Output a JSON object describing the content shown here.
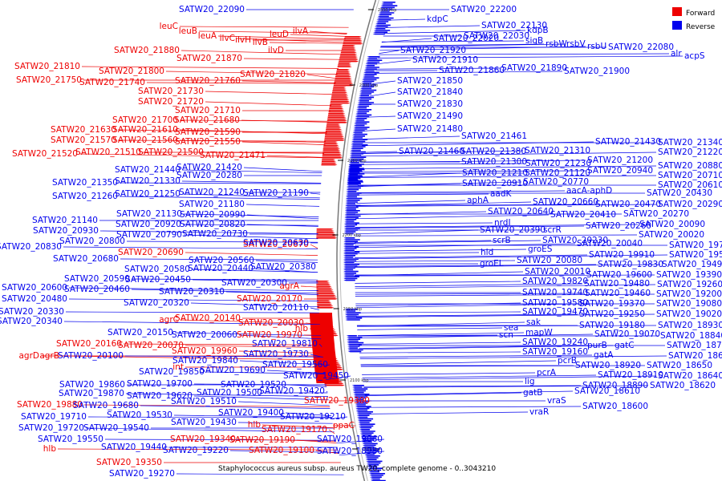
{
  "caption": "Staphylococcus aureus subsp. aureus TW20, complete genome - 0..3043210",
  "legend": [
    {
      "label": "Forward",
      "color": "#ee0000"
    },
    {
      "label": "Reverse",
      "color": "#0000ee"
    }
  ],
  "colors": {
    "forward": "#ee0000",
    "reverse": "#0000ee",
    "backbone": "#777777"
  },
  "ticks": [
    "2350 kbp",
    "2300 kbp",
    "2250 kbp",
    "2200 kbp",
    "2150 kbp",
    "2100 kbp",
    "2050 kbp"
  ],
  "labels": {
    "left": [
      {
        "text": "SATW20_22090",
        "strand": "reverse"
      },
      {
        "text": "leuC",
        "strand": "forward"
      },
      {
        "text": "leuB",
        "strand": "forward"
      },
      {
        "text": "leuA",
        "strand": "forward"
      },
      {
        "text": "ilvC",
        "strand": "forward"
      },
      {
        "text": "ilvH",
        "strand": "forward"
      },
      {
        "text": "ilvB",
        "strand": "forward"
      },
      {
        "text": "leuD",
        "strand": "forward"
      },
      {
        "text": "ilvA",
        "strand": "forward"
      },
      {
        "text": "SATW20_21880",
        "strand": "forward"
      },
      {
        "text": "ilvD",
        "strand": "forward"
      },
      {
        "text": "SATW20_21870",
        "strand": "forward"
      },
      {
        "text": "SATW20_21810",
        "strand": "forward"
      },
      {
        "text": "SATW20_21800",
        "strand": "forward"
      },
      {
        "text": "SATW20_21820",
        "strand": "forward"
      },
      {
        "text": "SATW20_21750",
        "strand": "forward"
      },
      {
        "text": "SATW20_21740",
        "strand": "forward"
      },
      {
        "text": "SATW20_21760",
        "strand": "forward"
      },
      {
        "text": "SATW20_21730",
        "strand": "forward"
      },
      {
        "text": "SATW20_21720",
        "strand": "forward"
      },
      {
        "text": "SATW20_21710",
        "strand": "forward"
      },
      {
        "text": "SATW20_21700",
        "strand": "forward"
      },
      {
        "text": "SATW20_21680",
        "strand": "forward"
      },
      {
        "text": "SATW20_21630",
        "strand": "forward"
      },
      {
        "text": "SATW20_21610",
        "strand": "forward"
      },
      {
        "text": "SATW20_21590",
        "strand": "forward"
      },
      {
        "text": "SATW20_21570",
        "strand": "forward"
      },
      {
        "text": "SATW20_21560",
        "strand": "forward"
      },
      {
        "text": "SATW20_21550",
        "strand": "forward"
      },
      {
        "text": "SATW20_21520",
        "strand": "forward"
      },
      {
        "text": "SATW20_21510",
        "strand": "forward"
      },
      {
        "text": "SATW20_21500",
        "strand": "forward"
      },
      {
        "text": "SATW20_21471",
        "strand": "forward"
      },
      {
        "text": "SATW20_21440",
        "strand": "reverse"
      },
      {
        "text": "SATW20_21420",
        "strand": "reverse"
      },
      {
        "text": "SATW20_20280",
        "strand": "reverse"
      },
      {
        "text": "SATW20_21350",
        "strand": "reverse"
      },
      {
        "text": "SATW20_21330",
        "strand": "reverse"
      },
      {
        "text": "SATW20_21260",
        "strand": "reverse"
      },
      {
        "text": "SATW20_21250",
        "strand": "reverse"
      },
      {
        "text": "SATW20_21240",
        "strand": "reverse"
      },
      {
        "text": "SATW20_21190",
        "strand": "reverse"
      },
      {
        "text": "SATW20_21180",
        "strand": "reverse"
      },
      {
        "text": "SATW20_21130",
        "strand": "reverse"
      },
      {
        "text": "SATW20_20990",
        "strand": "reverse"
      },
      {
        "text": "SATW20_21140",
        "strand": "reverse"
      },
      {
        "text": "SATW20_20920",
        "strand": "reverse"
      },
      {
        "text": "SATW20_20820",
        "strand": "reverse"
      },
      {
        "text": "SATW20_20930",
        "strand": "reverse"
      },
      {
        "text": "SATW20_20790",
        "strand": "reverse"
      },
      {
        "text": "SATW20_20730",
        "strand": "reverse"
      },
      {
        "text": "SATW20_20800",
        "strand": "reverse"
      },
      {
        "text": "SATW20_20830",
        "strand": "reverse"
      },
      {
        "text": "SATW20_20690",
        "strand": "forward"
      },
      {
        "text": "SATW20_20670",
        "strand": "forward"
      },
      {
        "text": "SATW20_20630",
        "strand": "reverse"
      },
      {
        "text": "SATW20_20680",
        "strand": "reverse"
      },
      {
        "text": "SATW20_20560",
        "strand": "reverse"
      },
      {
        "text": "SATW20_20580",
        "strand": "reverse"
      },
      {
        "text": "SATW20_20440",
        "strand": "reverse"
      },
      {
        "text": "SATW20_20380",
        "strand": "reverse"
      },
      {
        "text": "SATW20_20590",
        "strand": "reverse"
      },
      {
        "text": "SATW20_20450",
        "strand": "reverse"
      },
      {
        "text": "SATW20_20600",
        "strand": "reverse"
      },
      {
        "text": "SATW20_20460",
        "strand": "reverse"
      },
      {
        "text": "SATW20_20300",
        "strand": "reverse"
      },
      {
        "text": "agrA",
        "strand": "forward"
      },
      {
        "text": "SATW20_20480",
        "strand": "reverse"
      },
      {
        "text": "SATW20_20310",
        "strand": "reverse"
      },
      {
        "text": "SATW20_20320",
        "strand": "reverse"
      },
      {
        "text": "SATW20_20170",
        "strand": "forward"
      },
      {
        "text": "SATW20_20330",
        "strand": "reverse"
      },
      {
        "text": "SATW20_20110",
        "strand": "reverse"
      },
      {
        "text": "SATW20_20340",
        "strand": "reverse"
      },
      {
        "text": "agrC",
        "strand": "forward"
      },
      {
        "text": "SATW20_20140",
        "strand": "forward"
      },
      {
        "text": "SATW20_20030",
        "strand": "forward"
      },
      {
        "text": "hlb",
        "strand": "forward"
      },
      {
        "text": "SATW20_20150",
        "strand": "reverse"
      },
      {
        "text": "SATW20_20060",
        "strand": "reverse"
      },
      {
        "text": "SATW20_19970",
        "strand": "forward"
      },
      {
        "text": "SATW20_20160",
        "strand": "forward"
      },
      {
        "text": "SATW20_20070",
        "strand": "forward"
      },
      {
        "text": "SATW20_19810",
        "strand": "reverse"
      },
      {
        "text": "agrB",
        "strand": "forward"
      },
      {
        "text": "agrD",
        "strand": "forward"
      },
      {
        "text": "SATW20_20100",
        "strand": "reverse"
      },
      {
        "text": "SATW20_19960",
        "strand": "forward"
      },
      {
        "text": "SATW20_19730",
        "strand": "reverse"
      },
      {
        "text": "SATW20_19840",
        "strand": "reverse"
      },
      {
        "text": "int",
        "strand": "forward"
      },
      {
        "text": "SATW20_19560",
        "strand": "reverse"
      },
      {
        "text": "SATW20_19850",
        "strand": "reverse"
      },
      {
        "text": "SATW20_19690",
        "strand": "reverse"
      },
      {
        "text": "SATW20_19450",
        "strand": "reverse"
      },
      {
        "text": "SATW20_19860",
        "strand": "reverse"
      },
      {
        "text": "SATW20_19700",
        "strand": "reverse"
      },
      {
        "text": "SATW20_19520",
        "strand": "reverse"
      },
      {
        "text": "SATW20_19870",
        "strand": "reverse"
      },
      {
        "text": "SATW20_19620",
        "strand": "reverse"
      },
      {
        "text": "SATW20_19500",
        "strand": "reverse"
      },
      {
        "text": "SATW20_19420",
        "strand": "reverse"
      },
      {
        "text": "SATW20_19880",
        "strand": "forward"
      },
      {
        "text": "SATW20_19680",
        "strand": "reverse"
      },
      {
        "text": "SATW20_19510",
        "strand": "reverse"
      },
      {
        "text": "SATW20_19300",
        "strand": "forward"
      },
      {
        "text": "SATW20_19710",
        "strand": "reverse"
      },
      {
        "text": "SATW20_19530",
        "strand": "reverse"
      },
      {
        "text": "SATW20_19400",
        "strand": "reverse"
      },
      {
        "text": "SATW20_19720",
        "strand": "reverse"
      },
      {
        "text": "SATW20_19540",
        "strand": "reverse"
      },
      {
        "text": "SATW20_19430",
        "strand": "reverse"
      },
      {
        "text": "SATW20_19210",
        "strand": "reverse"
      },
      {
        "text": "hlb",
        "strand": "forward"
      },
      {
        "text": "SATW20_19170",
        "strand": "forward"
      },
      {
        "text": "ppaC",
        "strand": "forward"
      },
      {
        "text": "SATW20_19550",
        "strand": "reverse"
      },
      {
        "text": "SATW20_19340",
        "strand": "forward"
      },
      {
        "text": "SATW20_19190",
        "strand": "forward"
      },
      {
        "text": "SATW20_19060",
        "strand": "reverse"
      },
      {
        "text": "SATW20_19440",
        "strand": "reverse"
      },
      {
        "text": "hlb",
        "strand": "forward"
      },
      {
        "text": "SATW20_19220",
        "strand": "reverse"
      },
      {
        "text": "SATW20_19100",
        "strand": "forward"
      },
      {
        "text": "SATW20_18980",
        "strand": "reverse"
      },
      {
        "text": "SATW20_19350",
        "strand": "forward"
      },
      {
        "text": "SATW20_19270",
        "strand": "reverse"
      }
    ],
    "right": [
      {
        "text": "SATW20_22200",
        "strand": "reverse"
      },
      {
        "text": "kdpC",
        "strand": "reverse"
      },
      {
        "text": "SATW20_22130",
        "strand": "reverse"
      },
      {
        "text": "kdpB",
        "strand": "reverse"
      },
      {
        "text": "SATW20_22020",
        "strand": "reverse"
      },
      {
        "text": "SATW20_22030",
        "strand": "reverse"
      },
      {
        "text": "sigB",
        "strand": "reverse"
      },
      {
        "text": "rsbW",
        "strand": "reverse"
      },
      {
        "text": "rsbV",
        "strand": "reverse"
      },
      {
        "text": "rsbU",
        "strand": "reverse"
      },
      {
        "text": "SATW20_22080",
        "strand": "reverse"
      },
      {
        "text": "alr",
        "strand": "reverse"
      },
      {
        "text": "acpS",
        "strand": "reverse"
      },
      {
        "text": "SATW20_21920",
        "strand": "reverse"
      },
      {
        "text": "SATW20_21910",
        "strand": "reverse"
      },
      {
        "text": "SATW20_21860",
        "strand": "reverse"
      },
      {
        "text": "SATW20_21890",
        "strand": "reverse"
      },
      {
        "text": "SATW20_21900",
        "strand": "reverse"
      },
      {
        "text": "SATW20_21850",
        "strand": "reverse"
      },
      {
        "text": "SATW20_21840",
        "strand": "reverse"
      },
      {
        "text": "SATW20_21830",
        "strand": "reverse"
      },
      {
        "text": "SATW20_21490",
        "strand": "reverse"
      },
      {
        "text": "SATW20_21480",
        "strand": "reverse"
      },
      {
        "text": "SATW20_21461",
        "strand": "reverse"
      },
      {
        "text": "SATW20_21430",
        "strand": "reverse"
      },
      {
        "text": "SATW20_21340",
        "strand": "reverse"
      },
      {
        "text": "SATW20_21460",
        "strand": "reverse"
      },
      {
        "text": "SATW20_21380",
        "strand": "reverse"
      },
      {
        "text": "SATW20_21310",
        "strand": "reverse"
      },
      {
        "text": "SATW20_21220",
        "strand": "reverse"
      },
      {
        "text": "SATW20_21300",
        "strand": "reverse"
      },
      {
        "text": "SATW20_21230",
        "strand": "reverse"
      },
      {
        "text": "SATW20_21200",
        "strand": "reverse"
      },
      {
        "text": "SATW20_20880",
        "strand": "reverse"
      },
      {
        "text": "SATW20_21210",
        "strand": "reverse"
      },
      {
        "text": "SATW20_21120",
        "strand": "reverse"
      },
      {
        "text": "SATW20_20940",
        "strand": "reverse"
      },
      {
        "text": "SATW20_20710",
        "strand": "reverse"
      },
      {
        "text": "SATW20_20910",
        "strand": "reverse"
      },
      {
        "text": "SATW20_20770",
        "strand": "reverse"
      },
      {
        "text": "SATW20_20610",
        "strand": "reverse"
      },
      {
        "text": "aadK",
        "strand": "reverse"
      },
      {
        "text": "aacA-aphD",
        "strand": "reverse"
      },
      {
        "text": "aphA",
        "strand": "reverse"
      },
      {
        "text": "SATW20_20660",
        "strand": "reverse"
      },
      {
        "text": "SATW20_20430",
        "strand": "reverse"
      },
      {
        "text": "SATW20_20470",
        "strand": "reverse"
      },
      {
        "text": "SATW20_20290",
        "strand": "reverse"
      },
      {
        "text": "SATW20_20640",
        "strand": "reverse"
      },
      {
        "text": "SATW20_20410",
        "strand": "reverse"
      },
      {
        "text": "SATW20_20270",
        "strand": "reverse"
      },
      {
        "text": "nrdI",
        "strand": "reverse"
      },
      {
        "text": "SATW20_20260",
        "strand": "reverse"
      },
      {
        "text": "SATW20_20090",
        "strand": "reverse"
      },
      {
        "text": "SATW20_20390",
        "strand": "reverse"
      },
      {
        "text": "scrR",
        "strand": "reverse"
      },
      {
        "text": "SATW20_20020",
        "strand": "reverse"
      },
      {
        "text": "scrB",
        "strand": "reverse"
      },
      {
        "text": "SATW20_20230",
        "strand": "reverse"
      },
      {
        "text": "SATW20_20040",
        "strand": "reverse"
      },
      {
        "text": "SATW20_19780",
        "strand": "reverse"
      },
      {
        "text": "hld",
        "strand": "reverse"
      },
      {
        "text": "groES",
        "strand": "reverse"
      },
      {
        "text": "SATW20_19910",
        "strand": "reverse"
      },
      {
        "text": "SATW20_19570",
        "strand": "reverse"
      },
      {
        "text": "groEL",
        "strand": "reverse"
      },
      {
        "text": "SATW20_20080",
        "strand": "reverse"
      },
      {
        "text": "SATW20_19830",
        "strand": "reverse"
      },
      {
        "text": "SATW20_19490",
        "strand": "reverse"
      },
      {
        "text": "SATW20_20010",
        "strand": "reverse"
      },
      {
        "text": "SATW20_19600",
        "strand": "reverse"
      },
      {
        "text": "SATW20_19390",
        "strand": "reverse"
      },
      {
        "text": "SATW20_19820",
        "strand": "reverse"
      },
      {
        "text": "SATW20_19480",
        "strand": "reverse"
      },
      {
        "text": "SATW20_19260",
        "strand": "reverse"
      },
      {
        "text": "SATW20_19740",
        "strand": "reverse"
      },
      {
        "text": "SATW20_19460",
        "strand": "reverse"
      },
      {
        "text": "SATW20_19200",
        "strand": "reverse"
      },
      {
        "text": "SATW20_19580",
        "strand": "reverse"
      },
      {
        "text": "SATW20_19370",
        "strand": "reverse"
      },
      {
        "text": "SATW20_19080",
        "strand": "reverse"
      },
      {
        "text": "SATW20_19470",
        "strand": "reverse"
      },
      {
        "text": "SATW20_19250",
        "strand": "reverse"
      },
      {
        "text": "SATW20_19020",
        "strand": "reverse"
      },
      {
        "text": "sak",
        "strand": "reverse"
      },
      {
        "text": "SATW20_19180",
        "strand": "reverse"
      },
      {
        "text": "SATW20_18930",
        "strand": "reverse"
      },
      {
        "text": "sea",
        "strand": "reverse"
      },
      {
        "text": "mapW",
        "strand": "reverse"
      },
      {
        "text": "SATW20_19070",
        "strand": "reverse"
      },
      {
        "text": "SATW20_18840",
        "strand": "reverse"
      },
      {
        "text": "scn",
        "strand": "reverse"
      },
      {
        "text": "SATW20_19240",
        "strand": "reverse"
      },
      {
        "text": "purB",
        "strand": "reverse"
      },
      {
        "text": "gatC",
        "strand": "reverse"
      },
      {
        "text": "SATW20_18740",
        "strand": "reverse"
      },
      {
        "text": "SATW20_19160",
        "strand": "reverse"
      },
      {
        "text": "gatA",
        "strand": "reverse"
      },
      {
        "text": "SATW20_18660",
        "strand": "reverse"
      },
      {
        "text": "pcrB",
        "strand": "reverse"
      },
      {
        "text": "SATW20_18920",
        "strand": "reverse"
      },
      {
        "text": "SATW20_18650",
        "strand": "reverse"
      },
      {
        "text": "pcrA",
        "strand": "reverse"
      },
      {
        "text": "SATW20_18910",
        "strand": "reverse"
      },
      {
        "text": "SATW20_18640",
        "strand": "reverse"
      },
      {
        "text": "lig",
        "strand": "reverse"
      },
      {
        "text": "SATW20_18890",
        "strand": "reverse"
      },
      {
        "text": "SATW20_18620",
        "strand": "reverse"
      },
      {
        "text": "gatB",
        "strand": "reverse"
      },
      {
        "text": "SATW20_18610",
        "strand": "reverse"
      },
      {
        "text": "vraS",
        "strand": "reverse"
      },
      {
        "text": "SATW20_18600",
        "strand": "reverse"
      },
      {
        "text": "vraR",
        "strand": "reverse"
      }
    ]
  }
}
